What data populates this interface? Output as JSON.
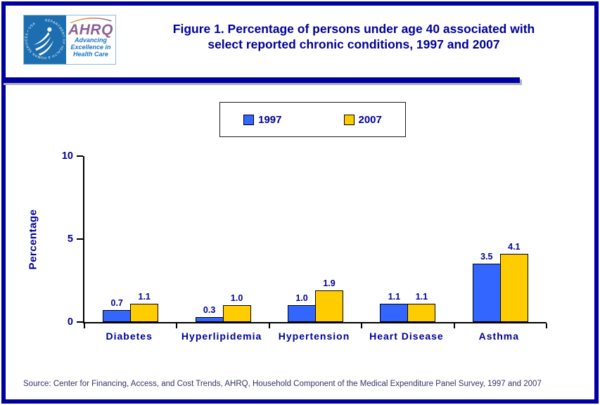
{
  "header": {
    "logo": {
      "seal_text": "DEPARTMENT OF HEALTH & HUMAN SERVICES • USA",
      "acronym": "AHRQ",
      "tagline": [
        "Advancing",
        "Excellence in",
        "Health Care"
      ]
    },
    "title_line1": "Figure 1. Percentage of persons under age 40 associated with",
    "title_line2": "select reported chronic conditions, 1997 and 2007"
  },
  "chart_data": {
    "type": "bar",
    "title": "Figure 1. Percentage of persons under age 40 associated with select reported chronic conditions, 1997 and 2007",
    "categories": [
      "Diabetes",
      "Hyperlipidemia",
      "Hypertension",
      "Heart Disease",
      "Asthma"
    ],
    "series": [
      {
        "name": "1997",
        "color": "#3366FF",
        "values": [
          0.7,
          0.3,
          1.0,
          1.1,
          3.5
        ]
      },
      {
        "name": "2007",
        "color": "#FFCC00",
        "values": [
          1.1,
          1.0,
          1.9,
          1.1,
          4.1
        ]
      }
    ],
    "xlabel": "",
    "ylabel": "Percentage",
    "ylim": [
      0,
      10
    ],
    "yticks": [
      0,
      5,
      10
    ],
    "legend_position": "top",
    "grid": false,
    "bar_value_labels": [
      "0.7",
      "1.1",
      "0.3",
      "1.0",
      "1.0",
      "1.9",
      "1.1",
      "1.1",
      "3.5",
      "4.1"
    ]
  },
  "footer": {
    "source": "Source: Center for Financing, Access, and Cost Trends, AHRQ, Household Component of the Medical Expenditure Panel Survey, 1997 and 2007"
  },
  "colors": {
    "navy": "#000099",
    "bar_1997": "#3366FF",
    "bar_2007": "#FFCC00",
    "hhs_seal_blue": "#1C6EB0",
    "ahrq_purple": "#8C6191",
    "tagline_blue": "#1B75BC"
  }
}
